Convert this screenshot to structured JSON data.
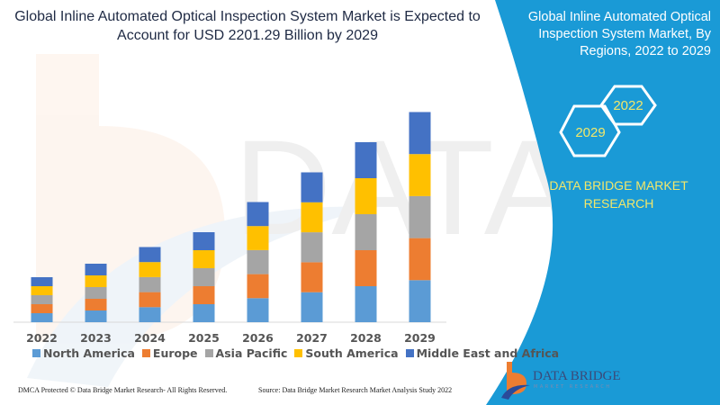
{
  "title": "Global Inline Automated Optical Inspection System Market is Expected to Account for USD 2201.29 Billion by 2029",
  "side_panel": {
    "title": "Global Inline Automated Optical Inspection System Market, By Regions, 2022 to 2029",
    "hex_years": [
      "2022",
      "2029"
    ],
    "brand_text": "DATA BRIDGE MARKET RESEARCH",
    "logo_text": "DATA BRIDGE",
    "logo_subtext": "MARKET RESEARCH",
    "panel_color": "#1a9ad6"
  },
  "footer": {
    "left": "DMCA Protected © Data Bridge Market Research- All Rights Reserved.",
    "right": "Source: Data Bridge Market Research Market Analysis Study 2022"
  },
  "chart_data": {
    "type": "bar",
    "stacked": true,
    "title": "Global Inline Automated Optical Inspection System Market is Expected to Account for USD 2201.29 Billion by 2029",
    "categories": [
      "2022",
      "2023",
      "2024",
      "2025",
      "2026",
      "2027",
      "2028",
      "2029"
    ],
    "series": [
      {
        "name": "North America",
        "color": "#5b9bd5",
        "values": [
          10,
          13,
          16.7,
          20,
          26.7,
          33.3,
          40,
          46.7
        ]
      },
      {
        "name": "Europe",
        "color": "#ed7d31",
        "values": [
          10,
          13,
          16.7,
          20,
          26.7,
          33.3,
          40,
          46.7
        ]
      },
      {
        "name": "Asia Pacific",
        "color": "#a5a5a5",
        "values": [
          10,
          13,
          16.7,
          20,
          26.7,
          33.3,
          40,
          46.7
        ]
      },
      {
        "name": "South America",
        "color": "#ffc000",
        "values": [
          10,
          13,
          16.7,
          20,
          26.7,
          33.3,
          40,
          46.7
        ]
      },
      {
        "name": "Middle East and Africa",
        "color": "#4472c4",
        "values": [
          10,
          13,
          16.7,
          20,
          26.7,
          33.3,
          40,
          46.7
        ]
      }
    ],
    "ylim": [
      0,
      240
    ],
    "y_axis_shown": false,
    "grid": false,
    "legend_position": "bottom"
  }
}
